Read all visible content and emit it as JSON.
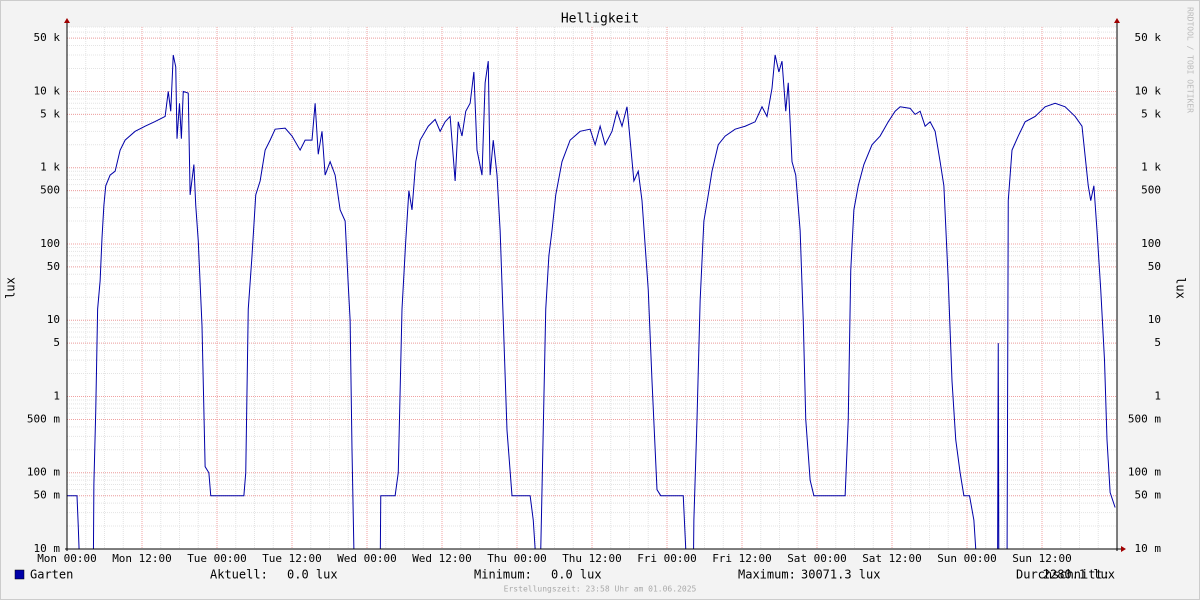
{
  "chart_data": {
    "type": "line",
    "title": "Helligkeit",
    "y_label": "lux",
    "log_scale": true,
    "grid": true,
    "watermark": "RRDTOOL / TOBI OETIKER",
    "footer": "Erstellungszeit: 23:58 Uhr am 01.06.2025",
    "xlim": [
      0,
      168
    ],
    "xticks": [
      {
        "value": 0,
        "label": "Mon 00:00"
      },
      {
        "value": 12,
        "label": "Mon 12:00"
      },
      {
        "value": 24,
        "label": "Tue 00:00"
      },
      {
        "value": 36,
        "label": "Tue 12:00"
      },
      {
        "value": 48,
        "label": "Wed 00:00"
      },
      {
        "value": 60,
        "label": "Wed 12:00"
      },
      {
        "value": 72,
        "label": "Thu 00:00"
      },
      {
        "value": 84,
        "label": "Thu 12:00"
      },
      {
        "value": 96,
        "label": "Fri 00:00"
      },
      {
        "value": 108,
        "label": "Fri 12:00"
      },
      {
        "value": 120,
        "label": "Sat 00:00"
      },
      {
        "value": 132,
        "label": "Sat 12:00"
      },
      {
        "value": 144,
        "label": "Sun 00:00"
      },
      {
        "value": 156,
        "label": "Sun 12:00"
      }
    ],
    "ylim": [
      0.01,
      70000
    ],
    "yticks": [
      {
        "value": 0.01,
        "label": "10 m"
      },
      {
        "value": 0.05,
        "label": "50 m"
      },
      {
        "value": 0.1,
        "label": "100 m"
      },
      {
        "value": 0.5,
        "label": "500 m"
      },
      1,
      5,
      10,
      50,
      100,
      500,
      {
        "value": 1000,
        "label": "1 k"
      },
      {
        "value": 5000,
        "label": "5 k"
      },
      {
        "value": 10000,
        "label": "10 k"
      },
      {
        "value": 50000,
        "label": "50 k"
      }
    ],
    "x": [
      0,
      1.6,
      1.8,
      2.1,
      4.2,
      4.3,
      4.6,
      4.9,
      5.3,
      5.6,
      5.9,
      6.2,
      6.9,
      7.7,
      8.5,
      9.3,
      10.9,
      12.5,
      14,
      15.7,
      16.2,
      16.6,
      17,
      17.4,
      17.6,
      18,
      18.3,
      18.6,
      19.4,
      19.7,
      20.3,
      20.6,
      21,
      21.6,
      22.1,
      22.7,
      23,
      28.3,
      28.6,
      29,
      29.6,
      30.2,
      30.9,
      31.7,
      32.5,
      33.3,
      34.9,
      36,
      37.3,
      38.1,
      39.2,
      39.7,
      40.2,
      40.8,
      41.3,
      42.1,
      42.9,
      43.7,
      44.5,
      45,
      45.3,
      45.6,
      45.9,
      46.1,
      50.1,
      50.2,
      52.5,
      53,
      53.6,
      54.2,
      54.7,
      55.2,
      55.8,
      56.5,
      57.8,
      58.9,
      59.7,
      60.5,
      61.3,
      62.1,
      62.6,
      63.2,
      63.8,
      64.5,
      65.1,
      65.6,
      66.4,
      66.9,
      67.4,
      67.7,
      68.2,
      68.8,
      69.3,
      69.8,
      70.4,
      71.2,
      74.1,
      74.6,
      74.9,
      75,
      75.7,
      75.9,
      76.6,
      77.1,
      77.6,
      78.2,
      79.2,
      80.5,
      82.1,
      83.7,
      84.5,
      85.3,
      86.1,
      87.2,
      88,
      88.8,
      89.6,
      90.1,
      90.7,
      91.4,
      92,
      93,
      93.6,
      94.4,
      95,
      98.6,
      99,
      99.2,
      100.2,
      100.3,
      100.8,
      101.3,
      101.9,
      102.6,
      103.2,
      104.2,
      105.3,
      106.9,
      108.5,
      110.1,
      111.2,
      112,
      112.8,
      113.3,
      113.9,
      114.4,
      115,
      115.4,
      116,
      116.6,
      117.3,
      117.8,
      118.2,
      118.9,
      119.5,
      124.5,
      125,
      125.4,
      125.9,
      126.6,
      127.5,
      128.8,
      130.1,
      131.4,
      132.5,
      133.3,
      134.9,
      135.7,
      136.5,
      137.3,
      138.1,
      138.9,
      139.7,
      140.3,
      141,
      141.6,
      142.2,
      142.9,
      143.5,
      144.4,
      145.1,
      145.4,
      145.6,
      148,
      148.9,
      149,
      149.1,
      150.4,
      150.6,
      151.2,
      152.2,
      153.3,
      154.9,
      156.5,
      158.1,
      159.7,
      161.3,
      162.4,
      163.4,
      163.8,
      164.3,
      164.8,
      165.4,
      166,
      166.4,
      166.9,
      167.7
    ],
    "series": [
      {
        "name": "Garten",
        "color": "#0000a8",
        "values": [
          0.05,
          0.05,
          0.02,
          0,
          0,
          0.07,
          0.65,
          14,
          33,
          120,
          320,
          580,
          800,
          900,
          1700,
          2300,
          3000,
          3500,
          4000,
          4700,
          10000,
          5500,
          30000,
          21000,
          2400,
          7000,
          2400,
          10000,
          9500,
          440,
          1100,
          320,
          110,
          8.5,
          0.12,
          0.1,
          0.05,
          0.05,
          0.1,
          14,
          70,
          440,
          670,
          1700,
          2300,
          3200,
          3300,
          2600,
          1700,
          2300,
          2300,
          7000,
          1500,
          3000,
          800,
          1200,
          800,
          280,
          200,
          29,
          10,
          0.2,
          0.01,
          0,
          0,
          0.05,
          0.05,
          0.1,
          14,
          110,
          500,
          280,
          1200,
          2300,
          3500,
          4300,
          3000,
          4000,
          4700,
          670,
          4000,
          2600,
          5500,
          7000,
          18000,
          1700,
          800,
          13000,
          25000,
          800,
          2300,
          800,
          150,
          10,
          0.36,
          0.05,
          0.05,
          0.024,
          0.01,
          0,
          0,
          0.024,
          14,
          70,
          150,
          440,
          1200,
          2300,
          3000,
          3200,
          2000,
          3500,
          2000,
          3000,
          5500,
          3500,
          6300,
          2300,
          670,
          900,
          370,
          25,
          1.6,
          0.06,
          0.05,
          0.05,
          0.01,
          0,
          0,
          0.024,
          0.5,
          18,
          200,
          440,
          900,
          2000,
          2600,
          3200,
          3500,
          4000,
          6300,
          4700,
          11000,
          30071.3,
          18000,
          25000,
          5500,
          13000,
          1200,
          800,
          150,
          10,
          0.5,
          0.08,
          0.05,
          0.05,
          0.5,
          45,
          280,
          580,
          1100,
          2000,
          2600,
          4000,
          5500,
          6300,
          6000,
          5000,
          5500,
          3500,
          4000,
          3000,
          1200,
          580,
          33,
          1.6,
          0.27,
          0.1,
          0.05,
          0.05,
          0.024,
          0.01,
          0,
          0,
          0.01,
          5,
          0,
          0,
          370,
          1700,
          2600,
          4000,
          4700,
          6300,
          7000,
          6300,
          4700,
          3500,
          580,
          370,
          580,
          150,
          25,
          3,
          0.27,
          0.055,
          0.035
        ]
      }
    ],
    "legend_stats": [
      {
        "label": "Aktuell:",
        "value": "0.0 lux"
      },
      {
        "label": "Minimum:",
        "value": "0.0 lux"
      },
      {
        "label": "Maximum:",
        "value": "30071.3 lux"
      },
      {
        "label": "Durchschnitt:",
        "value": "2280.1 lux"
      }
    ]
  }
}
